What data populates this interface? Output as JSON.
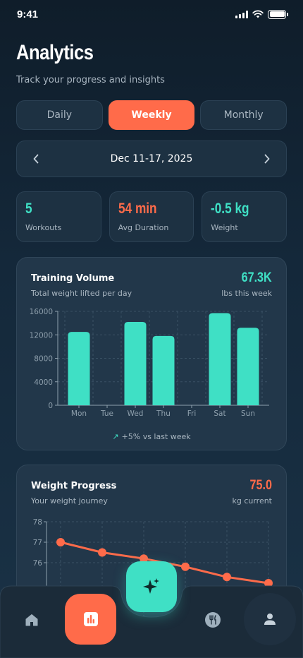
{
  "status": {
    "time": "9:41"
  },
  "header": {
    "title": "Analytics",
    "subtitle": "Track your progress and insights"
  },
  "period_tabs": [
    {
      "label": "Daily",
      "active": false
    },
    {
      "label": "Weekly",
      "active": true
    },
    {
      "label": "Monthly",
      "active": false
    }
  ],
  "date_range": {
    "label": "Dec 11-17, 2025"
  },
  "stats": [
    {
      "value": "5",
      "label": "Workouts",
      "color": "#3fe0c5"
    },
    {
      "value": "54 min",
      "label": "Avg Duration",
      "color": "#ff6b4a"
    },
    {
      "value": "-0.5 kg",
      "label": "Weight",
      "color": "#3fe0c5"
    }
  ],
  "training_volume": {
    "title": "Training Volume",
    "subtitle": "Total weight lifted per day",
    "total": "67.3K",
    "total_label": "lbs this week",
    "trend": "+5% vs last week"
  },
  "weight_progress": {
    "title": "Weight Progress",
    "subtitle": "Your weight journey",
    "current": "75.0",
    "current_label": "kg current"
  },
  "chart_data": [
    {
      "type": "bar",
      "categories": [
        "Mon",
        "Tue",
        "Wed",
        "Thu",
        "Fri",
        "Sat",
        "Sun"
      ],
      "values": [
        12500,
        0,
        14200,
        11800,
        0,
        15700,
        13200
      ],
      "ylim": [
        0,
        16000
      ],
      "yticks": [
        0,
        4000,
        8000,
        12000,
        16000
      ],
      "color": "#3fe0c5",
      "grid": true
    },
    {
      "type": "line",
      "x": [
        1,
        2,
        3,
        4,
        5,
        6
      ],
      "values": [
        77.0,
        76.5,
        76.2,
        75.8,
        75.3,
        75.0
      ],
      "ylim": [
        75,
        78
      ],
      "yticks": [
        76,
        77,
        78
      ],
      "color": "#ff6b4a",
      "grid": true
    }
  ],
  "nav": {
    "items": [
      "home-icon",
      "analytics-icon",
      "nutrition-icon",
      "profile-icon"
    ],
    "active": "analytics-icon"
  }
}
